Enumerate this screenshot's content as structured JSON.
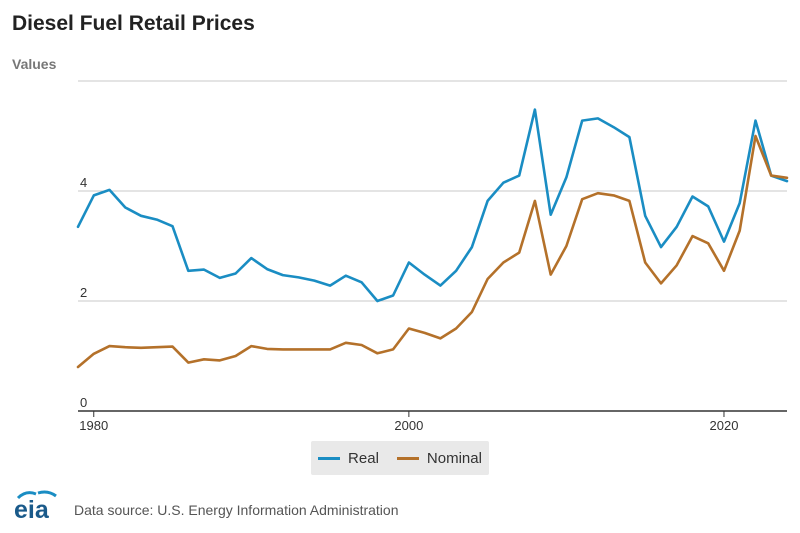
{
  "title": "Diesel Fuel Retail Prices",
  "colors": {
    "real": "#1a8dc3",
    "nominal": "#b4712a",
    "grid": "#c8c8c8",
    "axis": "#333333"
  },
  "legend": {
    "real_label": "Real",
    "nominal_label": "Nominal"
  },
  "footer": {
    "logo_text": "eia",
    "source": "Data source: U.S. Energy Information Administration"
  },
  "chart_data": {
    "type": "line",
    "ylabel": "Values",
    "ylim": [
      0,
      6
    ],
    "xlim": [
      1979,
      2024
    ],
    "y_ticks": [
      0,
      2,
      4
    ],
    "x_ticks": [
      1980,
      2000,
      2020
    ],
    "grid": true,
    "legend_position": "bottom-center",
    "x": [
      1979,
      1980,
      1981,
      1982,
      1983,
      1984,
      1985,
      1986,
      1987,
      1988,
      1989,
      1990,
      1991,
      1992,
      1993,
      1994,
      1995,
      1996,
      1997,
      1998,
      1999,
      2000,
      2001,
      2002,
      2003,
      2004,
      2005,
      2006,
      2007,
      2008,
      2009,
      2010,
      2011,
      2012,
      2013,
      2014,
      2015,
      2016,
      2017,
      2018,
      2019,
      2020,
      2021,
      2022,
      2023,
      2024
    ],
    "series": [
      {
        "name": "Real",
        "values": [
          3.35,
          3.92,
          4.02,
          3.7,
          3.55,
          3.48,
          3.36,
          2.55,
          2.57,
          2.42,
          2.5,
          2.78,
          2.58,
          2.47,
          2.43,
          2.37,
          2.28,
          2.46,
          2.34,
          2.0,
          2.1,
          2.7,
          2.48,
          2.28,
          2.55,
          2.98,
          3.82,
          4.15,
          4.28,
          5.48,
          3.57,
          4.25,
          5.28,
          5.32,
          5.16,
          4.98,
          3.55,
          2.98,
          3.35,
          3.9,
          3.72,
          3.08,
          3.78,
          5.28,
          4.28,
          4.18
        ]
      },
      {
        "name": "Nominal",
        "values": [
          0.8,
          1.04,
          1.18,
          1.16,
          1.15,
          1.16,
          1.17,
          0.88,
          0.94,
          0.92,
          1.0,
          1.18,
          1.13,
          1.12,
          1.12,
          1.12,
          1.12,
          1.24,
          1.2,
          1.05,
          1.12,
          1.5,
          1.42,
          1.32,
          1.5,
          1.8,
          2.4,
          2.7,
          2.88,
          3.82,
          2.48,
          3.0,
          3.85,
          3.96,
          3.92,
          3.82,
          2.7,
          2.32,
          2.65,
          3.18,
          3.05,
          2.55,
          3.28,
          5.0,
          4.28,
          4.24
        ]
      }
    ]
  }
}
